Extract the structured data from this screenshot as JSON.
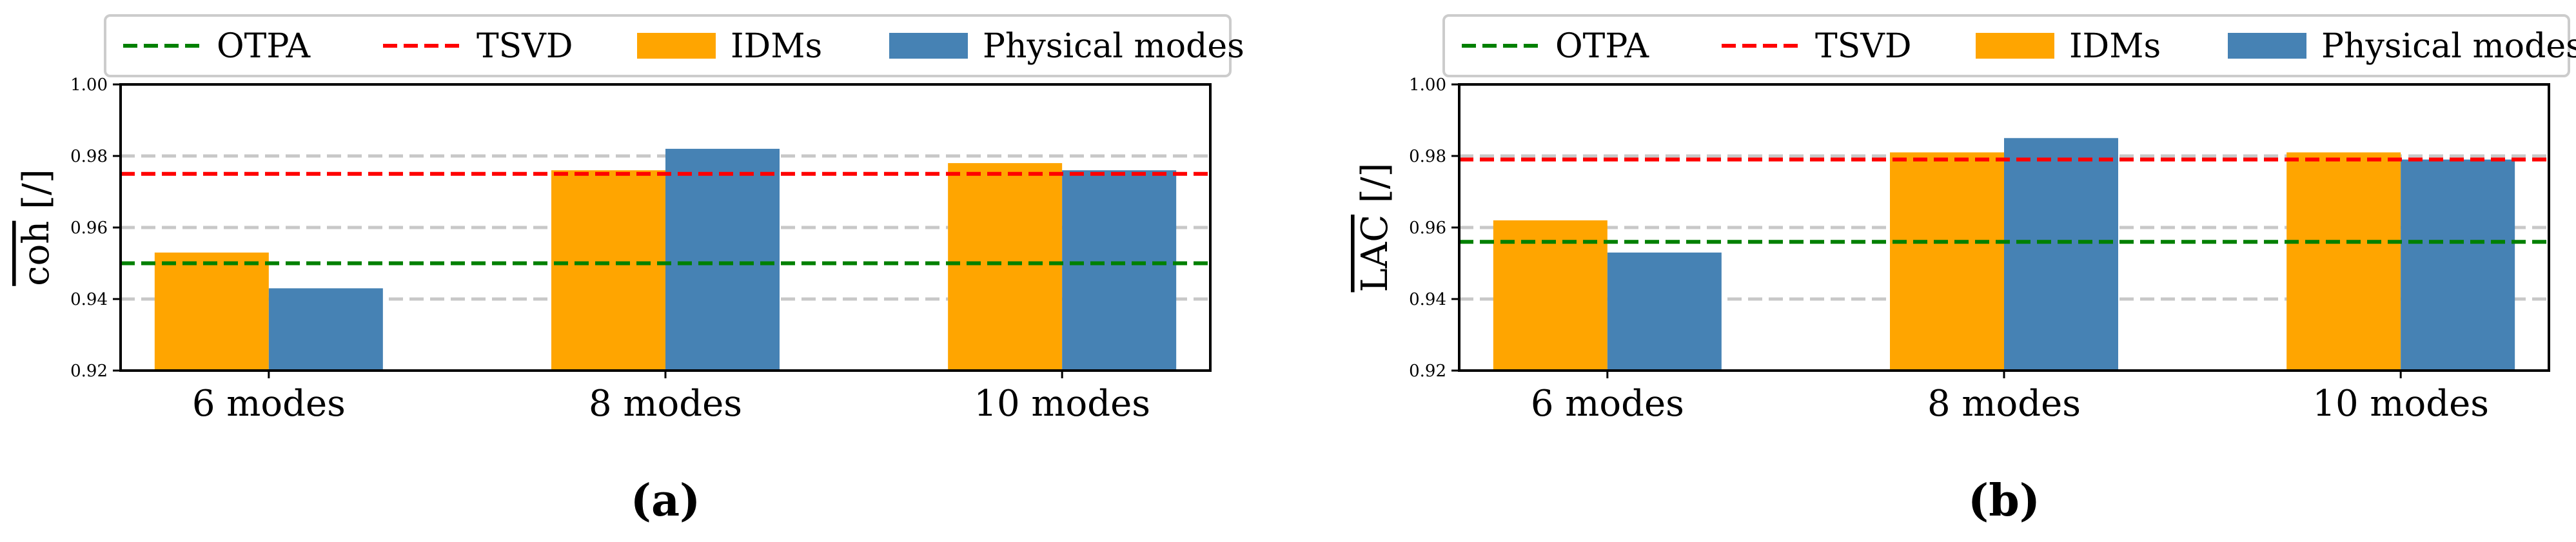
{
  "colors": {
    "idm": "#FFA500",
    "physical": "#4682B4",
    "otpa": "#008000",
    "tsvd": "#FF0000",
    "grid": "#c8c8c8"
  },
  "chart_data": [
    {
      "type": "bar",
      "panel_label": "(a)",
      "ylabel": "coh [/]",
      "ylabel_overline": "coh",
      "ylabel_unit": " [/]",
      "categories": [
        "6 modes",
        "8 modes",
        "10 modes"
      ],
      "series": [
        {
          "name": "IDMs",
          "values": [
            0.953,
            0.976,
            0.978
          ]
        },
        {
          "name": "Physical modes",
          "values": [
            0.943,
            0.982,
            0.976
          ]
        }
      ],
      "reference_lines": [
        {
          "name": "OTPA",
          "value": 0.95
        },
        {
          "name": "TSVD",
          "value": 0.975
        }
      ],
      "ylim": [
        0.92,
        1.0
      ],
      "yticks": [
        "0.92",
        "0.94",
        "0.96",
        "0.98",
        "1.00"
      ],
      "ytick_values": [
        0.92,
        0.94,
        0.96,
        0.98,
        1.0
      ],
      "grid_values": [
        0.94,
        0.96,
        0.98
      ],
      "legend": [
        "OTPA",
        "TSVD",
        "IDMs",
        "Physical modes"
      ],
      "legend_position": "top"
    },
    {
      "type": "bar",
      "panel_label": "(b)",
      "ylabel": "LAC [/]",
      "ylabel_overline": "LAC",
      "ylabel_unit": " [/]",
      "categories": [
        "6 modes",
        "8 modes",
        "10 modes"
      ],
      "series": [
        {
          "name": "IDMs",
          "values": [
            0.962,
            0.981,
            0.981
          ]
        },
        {
          "name": "Physical modes",
          "values": [
            0.953,
            0.985,
            0.979
          ]
        }
      ],
      "reference_lines": [
        {
          "name": "OTPA",
          "value": 0.956
        },
        {
          "name": "TSVD",
          "value": 0.979
        }
      ],
      "ylim": [
        0.92,
        1.0
      ],
      "yticks": [
        "0.92",
        "0.94",
        "0.96",
        "0.98",
        "1.00"
      ],
      "ytick_values": [
        0.92,
        0.94,
        0.96,
        0.98,
        1.0
      ],
      "grid_values": [
        0.94,
        0.96,
        0.98
      ],
      "legend": [
        "OTPA",
        "TSVD",
        "IDMs",
        "Physical modes"
      ],
      "legend_position": "top"
    }
  ]
}
